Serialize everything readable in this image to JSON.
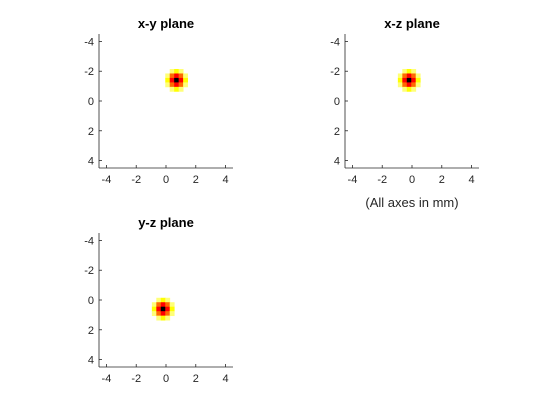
{
  "figure": {
    "note": "(All axes in mm)"
  },
  "chart_data": [
    {
      "type": "heatmap",
      "title": "x-y plane",
      "xlabel": "",
      "ylabel": "",
      "xlim": [
        -4.5,
        4.5
      ],
      "ylim": [
        -4.5,
        4.5
      ],
      "y_direction": "reversed",
      "xticks": [
        -4,
        -2,
        0,
        2,
        4
      ],
      "yticks": [
        -4,
        -2,
        0,
        2,
        4
      ],
      "tick_labels": [
        "-4",
        "-2",
        "0",
        "2",
        "4"
      ],
      "spot": {
        "center_x": 0.7,
        "center_y": -1.4,
        "radius": 0.7
      },
      "colormap": [
        "#000000",
        "#800000",
        "#ff0000",
        "#ff8000",
        "#ffff00",
        "#ffffff"
      ]
    },
    {
      "type": "heatmap",
      "title": "x-z plane",
      "xlabel": "",
      "ylabel": "",
      "xlim": [
        -4.5,
        4.5
      ],
      "ylim": [
        -4.5,
        4.5
      ],
      "y_direction": "reversed",
      "xticks": [
        -4,
        -2,
        0,
        2,
        4
      ],
      "yticks": [
        -4,
        -2,
        0,
        2,
        4
      ],
      "tick_labels": [
        "-4",
        "-2",
        "0",
        "2",
        "4"
      ],
      "spot": {
        "center_x": -0.2,
        "center_y": -1.4,
        "radius": 0.7
      },
      "colormap": [
        "#000000",
        "#800000",
        "#ff0000",
        "#ff8000",
        "#ffff00",
        "#ffffff"
      ]
    },
    {
      "type": "heatmap",
      "title": "y-z plane",
      "xlabel": "",
      "ylabel": "",
      "xlim": [
        -4.5,
        4.5
      ],
      "ylim": [
        -4.5,
        4.5
      ],
      "y_direction": "reversed",
      "xticks": [
        -4,
        -2,
        0,
        2,
        4
      ],
      "yticks": [
        -4,
        -2,
        0,
        2,
        4
      ],
      "tick_labels": [
        "-4",
        "-2",
        "0",
        "2",
        "4"
      ],
      "spot": {
        "center_x": -0.2,
        "center_y": 0.6,
        "radius": 0.7
      },
      "colormap": [
        "#000000",
        "#800000",
        "#ff0000",
        "#ff8000",
        "#ffff00",
        "#ffffff"
      ]
    }
  ]
}
